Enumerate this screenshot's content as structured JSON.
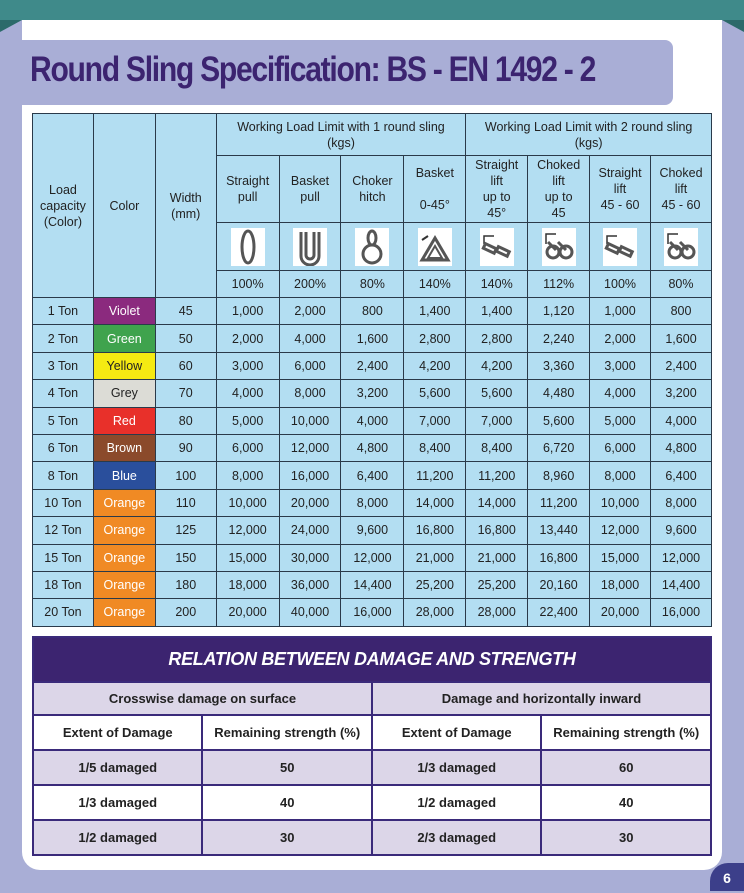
{
  "title": "Round Sling Specification: BS - EN 1492 - 2",
  "spec_table": {
    "headers": {
      "load": "Load capacity (Color)",
      "color": "Color",
      "width": "Width (mm)",
      "group1": "Working Load Limit with 1 round sling (kgs)",
      "group2": "Working Load Limit with 2 round sling (kgs)",
      "modes": [
        {
          "label": [
            "Straight",
            "pull"
          ],
          "icon": "straight-pull-icon",
          "pct": "100%"
        },
        {
          "label": [
            "Basket",
            "pull"
          ],
          "icon": "basket-pull-icon",
          "pct": "200%"
        },
        {
          "label": [
            "Choker",
            "hitch"
          ],
          "icon": "choker-hitch-icon",
          "pct": "80%"
        },
        {
          "label": [
            "Basket",
            "",
            "0-45°"
          ],
          "icon": "basket-angle-icon",
          "pct": "140%"
        },
        {
          "label": [
            "Straight",
            "lift",
            "up to",
            "45°"
          ],
          "icon": "two-sling-straight-icon",
          "pct": "140%"
        },
        {
          "label": [
            "Choked",
            "lift",
            "up to",
            "45"
          ],
          "icon": "two-sling-choked-icon",
          "pct": "112%"
        },
        {
          "label": [
            "Straight",
            "lift",
            "45 - 60"
          ],
          "icon": "two-sling-straight-icon",
          "pct": "100%"
        },
        {
          "label": [
            "Choked",
            "lift",
            "45 - 60"
          ],
          "icon": "two-sling-choked-icon",
          "pct": "80%"
        }
      ]
    },
    "rows": [
      {
        "load": "1 Ton",
        "color": "Violet",
        "hex": "#8b2a7e",
        "width": "45",
        "values": [
          "1,000",
          "2,000",
          "800",
          "1,400",
          "1,400",
          "1,120",
          "1,000",
          "800"
        ]
      },
      {
        "load": "2 Ton",
        "color": "Green",
        "hex": "#3fa34d",
        "width": "50",
        "values": [
          "2,000",
          "4,000",
          "1,600",
          "2,800",
          "2,800",
          "2,240",
          "2,000",
          "1,600"
        ]
      },
      {
        "load": "3 Ton",
        "color": "Yellow",
        "hex": "#f5ea12",
        "width": "60",
        "values": [
          "3,000",
          "6,000",
          "2,400",
          "4,200",
          "4,200",
          "3,360",
          "3,000",
          "2,400"
        ]
      },
      {
        "load": "4 Ton",
        "color": "Grey",
        "hex": "#dcdcd6",
        "width": "70",
        "values": [
          "4,000",
          "8,000",
          "3,200",
          "5,600",
          "5,600",
          "4,480",
          "4,000",
          "3,200"
        ]
      },
      {
        "load": "5 Ton",
        "color": "Red",
        "hex": "#e8302a",
        "width": "80",
        "values": [
          "5,000",
          "10,000",
          "4,000",
          "7,000",
          "7,000",
          "5,600",
          "5,000",
          "4,000"
        ]
      },
      {
        "load": "6 Ton",
        "color": "Brown",
        "hex": "#8b4a2b",
        "width": "90",
        "values": [
          "6,000",
          "12,000",
          "4,800",
          "8,400",
          "8,400",
          "6,720",
          "6,000",
          "4,800"
        ]
      },
      {
        "load": "8 Ton",
        "color": "Blue",
        "hex": "#2a4f9c",
        "width": "100",
        "values": [
          "8,000",
          "16,000",
          "6,400",
          "11,200",
          "11,200",
          "8,960",
          "8,000",
          "6,400"
        ]
      },
      {
        "load": "10 Ton",
        "color": "Orange",
        "hex": "#f08a24",
        "width": "110",
        "values": [
          "10,000",
          "20,000",
          "8,000",
          "14,000",
          "14,000",
          "11,200",
          "10,000",
          "8,000"
        ]
      },
      {
        "load": "12 Ton",
        "color": "Orange",
        "hex": "#f08a24",
        "width": "125",
        "values": [
          "12,000",
          "24,000",
          "9,600",
          "16,800",
          "16,800",
          "13,440",
          "12,000",
          "9,600"
        ]
      },
      {
        "load": "15 Ton",
        "color": "Orange",
        "hex": "#f08a24",
        "width": "150",
        "values": [
          "15,000",
          "30,000",
          "12,000",
          "21,000",
          "21,000",
          "16,800",
          "15,000",
          "12,000"
        ]
      },
      {
        "load": "18 Ton",
        "color": "Orange",
        "hex": "#f08a24",
        "width": "180",
        "values": [
          "18,000",
          "36,000",
          "14,400",
          "25,200",
          "25,200",
          "20,160",
          "18,000",
          "14,400"
        ]
      },
      {
        "load": "20 Ton",
        "color": "Orange",
        "hex": "#f08a24",
        "width": "200",
        "values": [
          "20,000",
          "40,000",
          "16,000",
          "28,000",
          "28,000",
          "22,400",
          "20,000",
          "16,000"
        ]
      }
    ]
  },
  "damage_table": {
    "title": "RELATION BETWEEN DAMAGE AND STRENGTH",
    "groups": [
      "Crosswise damage on surface",
      "Damage and horizontally inward"
    ],
    "col_extent": "Extent of Damage",
    "col_remaining": "Remaining strength (%)",
    "rows": [
      [
        "1/5 damaged",
        "50",
        "1/3 damaged",
        "60"
      ],
      [
        "1/3 damaged",
        "40",
        "1/2 damaged",
        "40"
      ],
      [
        "1/2 damaged",
        "30",
        "2/3 damaged",
        "30"
      ]
    ]
  },
  "page_number": "6"
}
